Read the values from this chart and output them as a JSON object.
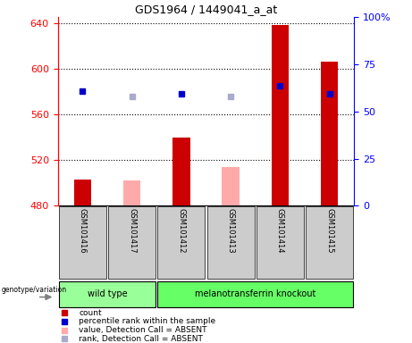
{
  "title": "GDS1964 / 1449041_a_at",
  "samples": [
    "GSM101416",
    "GSM101417",
    "GSM101412",
    "GSM101413",
    "GSM101414",
    "GSM101415"
  ],
  "count_values": [
    503,
    null,
    540,
    null,
    638,
    606
  ],
  "count_absent_values": [
    null,
    502,
    null,
    514,
    null,
    null
  ],
  "rank_values": [
    580,
    null,
    578,
    null,
    585,
    578
  ],
  "rank_absent_values": [
    null,
    576,
    null,
    576,
    null,
    null
  ],
  "ylim": [
    480,
    645
  ],
  "yticks": [
    480,
    520,
    560,
    600,
    640
  ],
  "right_yticks": [
    0,
    25,
    50,
    75,
    100
  ],
  "bar_width": 0.35,
  "count_color": "#cc0000",
  "count_absent_color": "#ffaaaa",
  "rank_color": "#0000cc",
  "rank_absent_color": "#aaaacc",
  "group_wt_color": "#99ff99",
  "group_mt_color": "#66ff66",
  "bg_color": "#cccccc",
  "plot_bg": "#ffffff",
  "legend_items": [
    {
      "label": "count",
      "color": "#cc0000"
    },
    {
      "label": "percentile rank within the sample",
      "color": "#0000cc"
    },
    {
      "label": "value, Detection Call = ABSENT",
      "color": "#ffaaaa"
    },
    {
      "label": "rank, Detection Call = ABSENT",
      "color": "#aaaacc"
    }
  ]
}
